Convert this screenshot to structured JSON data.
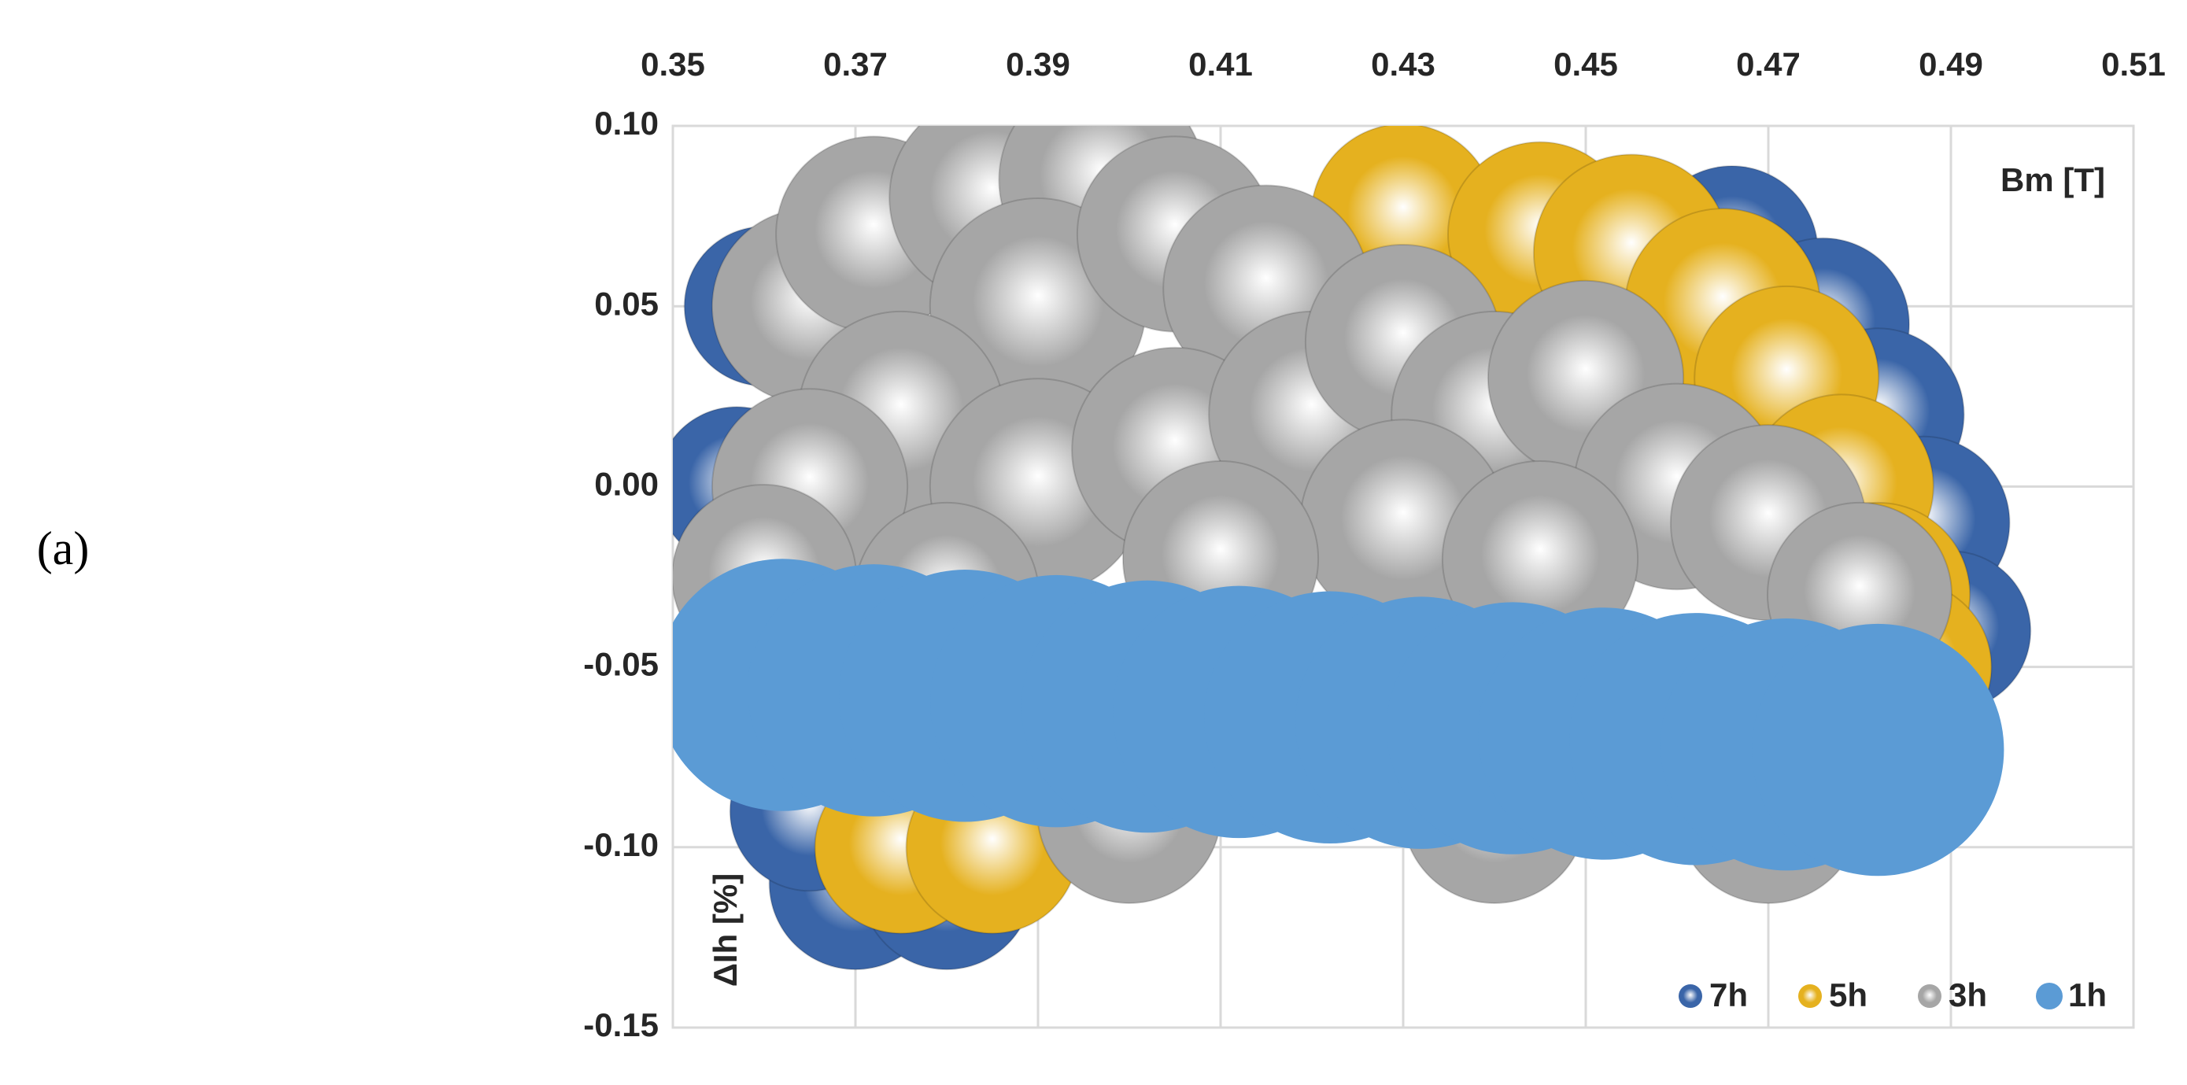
{
  "panel_label": "(a)",
  "chart_data": {
    "type": "bubble",
    "x_label": "Bm [T]",
    "y_label": "ΔIh [%]",
    "xlim": [
      0.35,
      0.51
    ],
    "xticks": [
      0.35,
      0.37,
      0.39,
      0.41,
      0.43,
      0.45,
      0.47,
      0.49,
      0.51
    ],
    "ylim": [
      -0.15,
      0.1
    ],
    "yticks": [
      {
        "value": 0.1,
        "label": "0.10"
      },
      0.05,
      {
        "value": 0,
        "label": "0.00"
      },
      -0.05,
      {
        "value": -0.1,
        "label": "-0.10"
      },
      -0.15
    ],
    "grid": true,
    "legend": "bottom-right",
    "series": [
      {
        "name": "7h",
        "color": "#3a65a8",
        "sphere": true,
        "x": [
          0.36,
          0.357,
          0.466,
          0.476,
          0.482,
          0.487,
          0.49,
          0.37,
          0.38,
          0.365
        ],
        "values": [
          0.05,
          0.0,
          0.065,
          0.045,
          0.02,
          -0.01,
          -0.04,
          -0.11,
          -0.11,
          -0.09
        ],
        "sizes": [
          30,
          30,
          35,
          35,
          35,
          35,
          30,
          35,
          35,
          30
        ]
      },
      {
        "name": "5h",
        "color": "#e5b11f",
        "sphere": true,
        "x": [
          0.43,
          0.445,
          0.455,
          0.465,
          0.472,
          0.478,
          0.482,
          0.485,
          0.375,
          0.385,
          0.362
        ],
        "values": [
          0.075,
          0.07,
          0.065,
          0.05,
          0.03,
          0.0,
          -0.03,
          -0.05,
          -0.1,
          -0.1,
          -0.04
        ],
        "sizes": [
          40,
          40,
          45,
          45,
          40,
          40,
          40,
          35,
          35,
          35,
          30
        ]
      },
      {
        "name": "3h",
        "color": "#a6a6a6",
        "sphere": true,
        "x": [
          0.365,
          0.372,
          0.385,
          0.397,
          0.39,
          0.405,
          0.415,
          0.375,
          0.365,
          0.36,
          0.39,
          0.405,
          0.42,
          0.43,
          0.44,
          0.45,
          0.46,
          0.47,
          0.48,
          0.43,
          0.445,
          0.41,
          0.38,
          0.4,
          0.44,
          0.47
        ],
        "values": [
          0.05,
          0.07,
          0.08,
          0.085,
          0.05,
          0.07,
          0.055,
          0.02,
          0.0,
          -0.025,
          0.0,
          0.01,
          0.02,
          0.04,
          0.02,
          0.03,
          0.0,
          -0.01,
          -0.03,
          -0.01,
          -0.02,
          -0.02,
          -0.03,
          -0.09,
          -0.09,
          -0.09
        ],
        "sizes": [
          45,
          45,
          50,
          50,
          55,
          45,
          50,
          50,
          45,
          40,
          55,
          50,
          50,
          45,
          50,
          45,
          50,
          45,
          40,
          50,
          45,
          45,
          40,
          40,
          40,
          40
        ]
      },
      {
        "name": "1h",
        "color": "#5b9bd5",
        "sphere": false,
        "x": [
          0.362,
          0.372,
          0.382,
          0.392,
          0.402,
          0.412,
          0.422,
          0.432,
          0.442,
          0.452,
          0.462,
          0.472,
          0.482
        ],
        "values": [
          -0.055,
          -0.0565,
          -0.058,
          -0.0595,
          -0.061,
          -0.0625,
          -0.064,
          -0.0655,
          -0.067,
          -0.0685,
          -0.07,
          -0.0715,
          -0.073
        ],
        "sizes": [
          75,
          75,
          75,
          75,
          75,
          75,
          75,
          75,
          75,
          75,
          75,
          75,
          75
        ]
      }
    ]
  }
}
